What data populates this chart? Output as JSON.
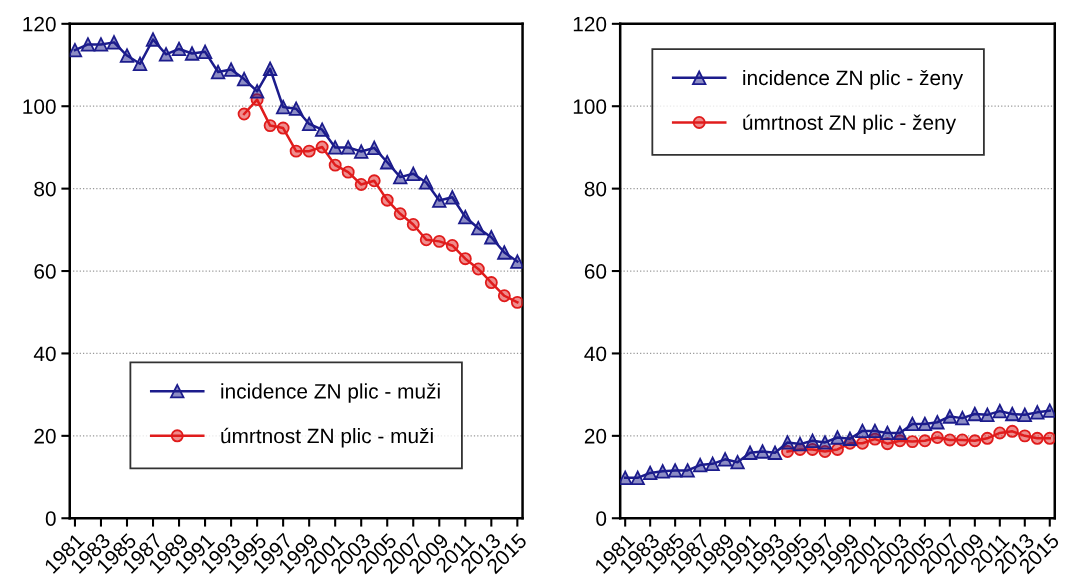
{
  "chart_data": [
    {
      "type": "line",
      "categories": [
        "1981",
        null,
        "1983",
        null,
        "1985",
        null,
        "1987",
        null,
        "1989",
        null,
        "1991",
        null,
        "1993",
        null,
        "1995",
        null,
        "1997",
        null,
        "1999",
        null,
        "2001",
        null,
        "2003",
        null,
        "2005",
        null,
        "2007",
        null,
        "2009",
        null,
        "2011",
        null,
        "2013",
        null,
        "2015"
      ],
      "ylim": [
        0,
        120
      ],
      "yticks": [
        0,
        20,
        40,
        60,
        80,
        100,
        120
      ],
      "grid": "y",
      "legend": "bottom",
      "series": [
        {
          "name": "incidence ZN plic - muži",
          "color": "#1c1c8c",
          "marker": "triangle",
          "values": [
            113.6,
            115,
            115,
            115.5,
            112.3,
            110.3,
            116.2,
            112.6,
            113.9,
            112.8,
            113.2,
            108.3,
            108.9,
            106.6,
            103.6,
            109.1,
            99.8,
            99.4,
            95.7,
            94.3,
            90,
            90,
            89,
            89.9,
            86.4,
            82.8,
            83.6,
            81.5,
            77.1,
            77.9,
            73.1,
            70.4,
            68.2,
            64.5,
            62.3
          ]
        },
        {
          "name": "úmrtnost ZN plic - muži",
          "color": "#e01c1c",
          "marker": "circle",
          "values": [
            null,
            null,
            null,
            null,
            null,
            null,
            null,
            null,
            null,
            null,
            null,
            null,
            null,
            98.1,
            101.6,
            95.3,
            94.7,
            89.1,
            89.1,
            90.1,
            85.7,
            84.0,
            81,
            81.9,
            77.2,
            73.9,
            71.3,
            67.6,
            67.2,
            66.2,
            63,
            60.5,
            57.2,
            54,
            52.4
          ]
        }
      ]
    },
    {
      "type": "line",
      "categories": [
        "1981",
        null,
        "1983",
        null,
        "1985",
        null,
        "1987",
        null,
        "1989",
        null,
        "1991",
        null,
        "1993",
        null,
        "1995",
        null,
        "1997",
        null,
        "1999",
        null,
        "2001",
        null,
        "2003",
        null,
        "2005",
        null,
        "2007",
        null,
        "2009",
        null,
        "2011",
        null,
        "2013",
        null,
        "2015"
      ],
      "ylim": [
        0,
        120
      ],
      "yticks": [
        0,
        20,
        40,
        60,
        80,
        100,
        120
      ],
      "grid": "y",
      "legend": "top left",
      "series": [
        {
          "name": "incidence ZN plic - ženy",
          "color": "#1c1c8c",
          "marker": "triangle",
          "values": [
            9.8,
            9.8,
            11,
            11.4,
            11.6,
            11.6,
            12.9,
            13.2,
            14.3,
            13.6,
            15.9,
            16.2,
            15.9,
            18.4,
            18,
            18.8,
            18.4,
            19.6,
            19.3,
            21.2,
            21.2,
            20.7,
            20.7,
            22.9,
            22.9,
            23.3,
            24.7,
            24.3,
            25.3,
            25.1,
            26,
            25.3,
            25.1,
            25.7,
            26.1
          ]
        },
        {
          "name": "úmrtnost ZN plic - ženy",
          "color": "#e01c1c",
          "marker": "circle",
          "values": [
            null,
            null,
            null,
            null,
            null,
            null,
            null,
            null,
            null,
            null,
            null,
            null,
            null,
            16.2,
            16.7,
            16.7,
            16.2,
            16.7,
            18.2,
            18.2,
            19.2,
            18.1,
            18.8,
            18.6,
            18.8,
            19.6,
            19,
            19,
            18.8,
            19.4,
            20.7,
            21.1,
            20,
            19.4,
            19.4
          ]
        }
      ]
    }
  ]
}
